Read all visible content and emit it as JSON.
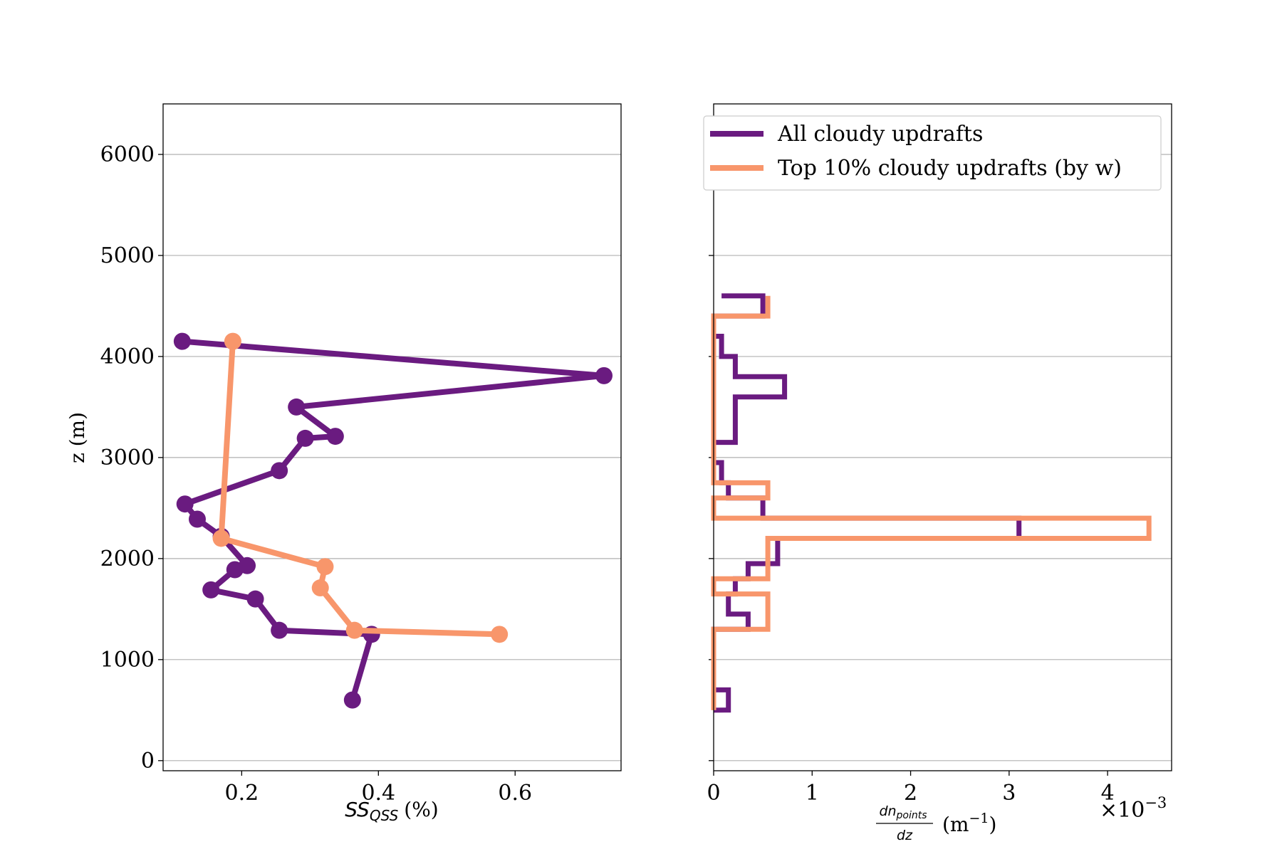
{
  "colors": {
    "all": "#6a1b80",
    "top": "#f8966b",
    "grid": "#b0b0b0"
  },
  "chart_data": [
    {
      "type": "line",
      "panel": "left",
      "xlabel": "SS_QSS (%)",
      "xlabel_main": "SS",
      "xlabel_sub": "QSS",
      "xlabel_unit": "(%)",
      "ylabel": "z (m)",
      "xlim": [
        0.085,
        0.755
      ],
      "ylim": [
        -100,
        6500
      ],
      "xticks": [
        0.2,
        0.4,
        0.6
      ],
      "xtick_labels": [
        "0.2",
        "0.4",
        "0.6"
      ],
      "yticks": [
        0,
        1000,
        2000,
        3000,
        4000,
        5000,
        6000
      ],
      "ytick_labels": [
        "0",
        "1000",
        "2000",
        "3000",
        "4000",
        "5000",
        "6000"
      ],
      "grid": "y",
      "series": [
        {
          "name": "All cloudy updrafts",
          "color": "#6a1b80",
          "points": [
            [
              0.362,
              600
            ],
            [
              0.39,
              1250
            ],
            [
              0.255,
              1290
            ],
            [
              0.22,
              1600
            ],
            [
              0.155,
              1690
            ],
            [
              0.19,
              1890
            ],
            [
              0.208,
              1930
            ],
            [
              0.17,
              2220
            ],
            [
              0.135,
              2390
            ],
            [
              0.117,
              2540
            ],
            [
              0.255,
              2870
            ],
            [
              0.293,
              3190
            ],
            [
              0.337,
              3210
            ],
            [
              0.28,
              3500
            ],
            [
              0.73,
              3810
            ],
            [
              0.113,
              4150
            ]
          ]
        },
        {
          "name": "Top 10% cloudy updrafts (by w)",
          "color": "#f8966b",
          "points": [
            [
              0.577,
              1250
            ],
            [
              0.365,
              1290
            ],
            [
              0.315,
              1710
            ],
            [
              0.322,
              1920
            ],
            [
              0.17,
              2200
            ],
            [
              0.187,
              4150
            ]
          ]
        }
      ]
    },
    {
      "type": "step",
      "panel": "right",
      "xlabel": "dn_points/dz (m^-1)",
      "xlabel_num": "dn",
      "xlabel_num_sub": "points",
      "xlabel_den": "dz",
      "xlabel_unit": "(m",
      "xlabel_unit_exp": "−1",
      "xlabel_unit_close": ")",
      "offset_text": "×10",
      "offset_exp": "−3",
      "xlim": [
        0,
        4.65
      ],
      "ylim": [
        -100,
        6500
      ],
      "xticks": [
        0,
        1,
        2,
        3,
        4
      ],
      "xtick_labels": [
        "0",
        "1",
        "2",
        "3",
        "4"
      ],
      "yticks": [
        0,
        1000,
        2000,
        3000,
        4000,
        5000,
        6000
      ],
      "grid": "y",
      "legend": {
        "placement": "top-right",
        "entries": [
          {
            "label": "All cloudy updrafts",
            "color": "#6a1b80"
          },
          {
            "label": "Top 10% cloudy updrafts (by w)",
            "color": "#f8966b"
          }
        ]
      },
      "bin_edges": [
        500,
        700,
        900,
        1100,
        1300,
        1450,
        1650,
        1800,
        1950,
        2200,
        2400,
        2600,
        2750,
        2950,
        3150,
        3400,
        3600,
        3800,
        4000,
        4200,
        4400,
        4600
      ],
      "series": [
        {
          "name": "All cloudy updrafts",
          "color": "#6a1b80",
          "values": [
            0.15,
            0,
            0,
            0,
            0.35,
            0.15,
            0.22,
            0.35,
            0.65,
            3.1,
            0.5,
            0.15,
            0.08,
            0,
            0.22,
            0.22,
            0.72,
            0.22,
            0.08,
            0,
            0.5,
            0.08
          ]
        },
        {
          "name": "Top 10% cloudy updrafts (by w)",
          "color": "#f8966b",
          "values": [
            0,
            0,
            0,
            0,
            0.55,
            0.55,
            0,
            0.55,
            0.55,
            4.42,
            0,
            0.55,
            0,
            0,
            0,
            0,
            0,
            0,
            0,
            0,
            0.55,
            0.55
          ]
        }
      ]
    }
  ]
}
